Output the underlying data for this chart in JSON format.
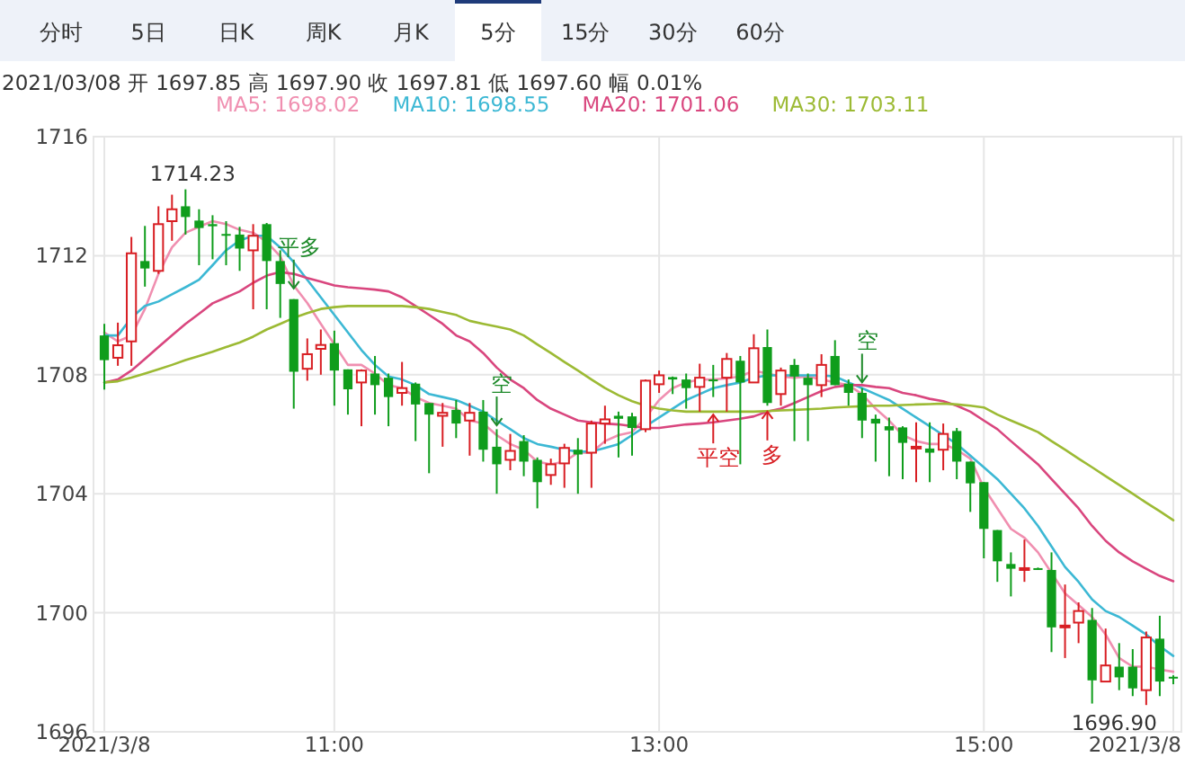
{
  "chart_data": {
    "type": "candlestick",
    "subtitle": "2021/03/08  开 1697.85  高 1697.90  收 1697.81  低 1697.60  幅 0.01%",
    "annotations": [
      "分时",
      "5日",
      "日K",
      "周K",
      "月K",
      "5分",
      "15分",
      "30分",
      "60分",
      {
        "text": "1714.23",
        "x": "2021-03-08T10:05",
        "y": 1714.23
      },
      {
        "text": "1696.90",
        "x": "2021-03-08T16:00",
        "y": 1696.9
      },
      {
        "text": "平多",
        "x": "2021-03-08T10:45",
        "y": 1710.9
      },
      {
        "text": "空",
        "x": "2021-03-08T12:00",
        "y": 1706.3
      },
      {
        "text": "平空",
        "x": "2021-03-08T13:20",
        "y": 1706.66
      },
      {
        "text": "多",
        "x": "2021-03-08T13:40",
        "y": 1706.76
      },
      {
        "text": "空",
        "x": "2021-03-08T14:15",
        "y": 1707.74
      }
    ],
    "x": [
      "2021-03-08T09:35",
      "2021-03-08T09:40",
      "2021-03-08T09:45",
      "2021-03-08T09:50",
      "2021-03-08T09:55",
      "2021-03-08T10:00",
      "2021-03-08T10:05",
      "2021-03-08T10:10",
      "2021-03-08T10:15",
      "2021-03-08T10:20",
      "2021-03-08T10:25",
      "2021-03-08T10:30",
      "2021-03-08T10:35",
      "2021-03-08T10:40",
      "2021-03-08T10:45",
      "2021-03-08T10:50",
      "2021-03-08T10:55",
      "2021-03-08T11:00",
      "2021-03-08T11:05",
      "2021-03-08T11:10",
      "2021-03-08T11:15",
      "2021-03-08T11:20",
      "2021-03-08T11:25",
      "2021-03-08T11:30",
      "2021-03-08T11:35",
      "2021-03-08T11:40",
      "2021-03-08T11:45",
      "2021-03-08T11:50",
      "2021-03-08T11:55",
      "2021-03-08T12:00",
      "2021-03-08T12:05",
      "2021-03-08T12:10",
      "2021-03-08T12:15",
      "2021-03-08T12:20",
      "2021-03-08T12:25",
      "2021-03-08T12:30",
      "2021-03-08T12:35",
      "2021-03-08T12:40",
      "2021-03-08T12:45",
      "2021-03-08T12:50",
      "2021-03-08T12:55",
      "2021-03-08T13:00",
      "2021-03-08T13:05",
      "2021-03-08T13:10",
      "2021-03-08T13:15",
      "2021-03-08T13:20",
      "2021-03-08T13:25",
      "2021-03-08T13:30",
      "2021-03-08T13:35",
      "2021-03-08T13:40",
      "2021-03-08T13:45",
      "2021-03-08T13:50",
      "2021-03-08T13:55",
      "2021-03-08T14:00",
      "2021-03-08T14:05",
      "2021-03-08T14:10",
      "2021-03-08T14:15",
      "2021-03-08T14:20",
      "2021-03-08T14:25",
      "2021-03-08T14:30",
      "2021-03-08T14:35",
      "2021-03-08T14:40",
      "2021-03-08T14:45",
      "2021-03-08T14:50",
      "2021-03-08T14:55",
      "2021-03-08T15:00",
      "2021-03-08T15:05",
      "2021-03-08T15:10",
      "2021-03-08T15:15",
      "2021-03-08T15:20",
      "2021-03-08T15:25",
      "2021-03-08T15:30",
      "2021-03-08T15:35",
      "2021-03-08T15:40",
      "2021-03-08T15:45",
      "2021-03-08T15:50",
      "2021-03-08T15:55",
      "2021-03-08T16:00",
      "2021-03-08T16:05",
      "2021-03-08T16:10"
    ],
    "ohlc": [
      [
        1709.32,
        1709.71,
        1707.5,
        1708.49
      ],
      [
        1708.57,
        1709.75,
        1708.3,
        1708.99
      ],
      [
        1709.12,
        1712.63,
        1708.3,
        1712.08
      ],
      [
        1711.82,
        1713.0,
        1710.96,
        1711.57
      ],
      [
        1711.49,
        1713.66,
        1711.39,
        1713.06
      ],
      [
        1713.16,
        1714.05,
        1712.5,
        1713.56
      ],
      [
        1713.66,
        1714.23,
        1712.71,
        1713.3
      ],
      [
        1713.18,
        1713.56,
        1711.68,
        1712.93
      ],
      [
        1713.06,
        1713.36,
        1711.88,
        1712.99
      ],
      [
        1712.73,
        1713.16,
        1711.68,
        1712.69
      ],
      [
        1712.71,
        1712.97,
        1711.49,
        1712.24
      ],
      [
        1712.18,
        1713.06,
        1710.2,
        1712.67
      ],
      [
        1713.06,
        1713.1,
        1710.2,
        1711.82
      ],
      [
        1711.82,
        1712.18,
        1709.91,
        1711.05
      ],
      [
        1710.54,
        1710.54,
        1706.86,
        1708.1
      ],
      [
        1708.2,
        1709.22,
        1707.8,
        1708.69
      ],
      [
        1708.87,
        1709.52,
        1708.0,
        1709.0
      ],
      [
        1709.06,
        1709.48,
        1706.96,
        1708.14
      ],
      [
        1708.18,
        1708.18,
        1706.66,
        1707.51
      ],
      [
        1707.74,
        1708.18,
        1706.27,
        1708.14
      ],
      [
        1708.04,
        1708.63,
        1706.66,
        1707.65
      ],
      [
        1707.9,
        1708.04,
        1706.27,
        1707.25
      ],
      [
        1707.39,
        1708.43,
        1706.96,
        1707.55
      ],
      [
        1707.7,
        1707.74,
        1705.77,
        1707.0
      ],
      [
        1707.05,
        1707.05,
        1704.69,
        1706.66
      ],
      [
        1706.62,
        1707.05,
        1705.58,
        1706.72
      ],
      [
        1706.82,
        1707.15,
        1705.87,
        1706.36
      ],
      [
        1706.46,
        1707.05,
        1705.28,
        1706.72
      ],
      [
        1706.76,
        1707.15,
        1705.08,
        1705.48
      ],
      [
        1705.58,
        1706.17,
        1704.0,
        1704.99
      ],
      [
        1705.14,
        1706.01,
        1704.79,
        1705.44
      ],
      [
        1705.77,
        1705.97,
        1704.59,
        1705.08
      ],
      [
        1705.14,
        1705.22,
        1703.51,
        1704.39
      ],
      [
        1704.63,
        1705.18,
        1704.3,
        1704.99
      ],
      [
        1705.02,
        1705.68,
        1704.2,
        1705.54
      ],
      [
        1705.48,
        1705.87,
        1704.0,
        1705.32
      ],
      [
        1705.38,
        1706.46,
        1704.2,
        1706.36
      ],
      [
        1706.36,
        1706.96,
        1705.68,
        1706.5
      ],
      [
        1706.62,
        1706.76,
        1705.22,
        1706.52
      ],
      [
        1706.6,
        1706.72,
        1705.28,
        1706.21
      ],
      [
        1706.17,
        1707.84,
        1706.07,
        1707.8
      ],
      [
        1707.68,
        1708.14,
        1707.39,
        1707.98
      ],
      [
        1707.92,
        1707.94,
        1707.35,
        1707.84
      ],
      [
        1707.84,
        1708.04,
        1706.86,
        1707.55
      ],
      [
        1707.59,
        1708.37,
        1706.76,
        1707.9
      ],
      [
        1707.84,
        1708.33,
        1707.25,
        1707.78
      ],
      [
        1707.9,
        1708.73,
        1706.76,
        1708.53
      ],
      [
        1708.47,
        1708.63,
        1704.99,
        1707.74
      ],
      [
        1707.74,
        1709.36,
        1707.74,
        1708.89
      ],
      [
        1708.93,
        1709.52,
        1706.96,
        1707.05
      ],
      [
        1707.35,
        1708.24,
        1706.96,
        1708.14
      ],
      [
        1708.33,
        1708.53,
        1705.77,
        1707.94
      ],
      [
        1707.9,
        1708.04,
        1705.77,
        1707.65
      ],
      [
        1707.65,
        1708.69,
        1707.25,
        1708.33
      ],
      [
        1708.63,
        1709.16,
        1707.65,
        1707.65
      ],
      [
        1707.7,
        1707.84,
        1706.96,
        1707.39
      ],
      [
        1707.39,
        1707.55,
        1705.87,
        1706.46
      ],
      [
        1706.52,
        1706.66,
        1705.08,
        1706.36
      ],
      [
        1706.27,
        1706.56,
        1704.59,
        1706.13
      ],
      [
        1706.23,
        1706.27,
        1704.49,
        1705.71
      ],
      [
        1705.52,
        1706.4,
        1704.39,
        1705.58
      ],
      [
        1705.52,
        1706.4,
        1704.39,
        1705.38
      ],
      [
        1705.48,
        1706.36,
        1704.79,
        1706.01
      ],
      [
        1706.11,
        1706.21,
        1704.49,
        1705.08
      ],
      [
        1705.08,
        1705.08,
        1703.39,
        1704.35
      ],
      [
        1704.39,
        1704.39,
        1701.83,
        1702.82
      ],
      [
        1702.78,
        1702.78,
        1701.04,
        1701.73
      ],
      [
        1701.64,
        1702.03,
        1700.55,
        1701.48
      ],
      [
        1701.46,
        1702.46,
        1701.04,
        1701.5
      ],
      [
        1701.5,
        1701.52,
        1701.44,
        1701.46
      ],
      [
        1701.44,
        1702.03,
        1698.68,
        1699.51
      ],
      [
        1699.53,
        1700.95,
        1698.48,
        1699.57
      ],
      [
        1699.67,
        1700.35,
        1698.98,
        1700.06
      ],
      [
        1699.76,
        1700.16,
        1696.95,
        1697.73
      ],
      [
        1697.69,
        1699.47,
        1697.69,
        1698.23
      ],
      [
        1698.19,
        1698.98,
        1697.4,
        1697.83
      ],
      [
        1698.19,
        1698.78,
        1697.2,
        1697.46
      ],
      [
        1697.4,
        1699.37,
        1696.9,
        1699.17
      ],
      [
        1699.13,
        1699.9,
        1697.2,
        1697.69
      ],
      [
        1697.85,
        1697.9,
        1697.6,
        1697.81
      ]
    ],
    "series": [
      {
        "name": "MA5: 1698.02",
        "color": "#f08fb0",
        "type": "line",
        "values": [
          1709.42,
          1709.12,
          1709.32,
          1710.21,
          1711.39,
          1712.28,
          1712.77,
          1712.97,
          1713.16,
          1713.06,
          1712.87,
          1712.77,
          1712.47,
          1711.98,
          1711.0,
          1710.41,
          1709.71,
          1709.02,
          1708.33,
          1708.33,
          1708.04,
          1707.65,
          1707.55,
          1707.25,
          1707.05,
          1706.96,
          1706.86,
          1706.46,
          1706.36,
          1705.97,
          1705.67,
          1705.48,
          1705.08,
          1704.99,
          1705.08,
          1705.38,
          1705.38,
          1705.77,
          1705.97,
          1706.07,
          1706.56,
          1707.15,
          1707.55,
          1707.74,
          1707.84,
          1707.84,
          1707.88,
          1707.94,
          1708.14,
          1708.04,
          1707.94,
          1707.9,
          1707.94,
          1707.84,
          1707.74,
          1707.65,
          1707.35,
          1706.86,
          1706.46,
          1705.97,
          1705.77,
          1705.67,
          1705.67,
          1705.48,
          1705.18,
          1704.2,
          1703.51,
          1702.82,
          1702.52,
          1702.03,
          1701.34,
          1700.65,
          1700.26,
          1699.86,
          1699.27,
          1698.48,
          1698.19,
          1698.19,
          1698.09,
          1698.02
        ]
      },
      {
        "name": "MA10: 1698.55",
        "color": "#3cb8d4",
        "type": "line",
        "values": [
          1709.32,
          1709.32,
          1709.91,
          1710.31,
          1710.46,
          1710.7,
          1710.94,
          1711.19,
          1711.68,
          1712.18,
          1712.51,
          1712.67,
          1712.67,
          1712.28,
          1711.78,
          1711.19,
          1710.6,
          1710.01,
          1709.42,
          1708.83,
          1708.33,
          1707.94,
          1707.84,
          1707.65,
          1707.35,
          1707.25,
          1707.15,
          1706.96,
          1706.76,
          1706.46,
          1706.17,
          1705.87,
          1705.67,
          1705.58,
          1705.48,
          1705.42,
          1705.42,
          1705.54,
          1705.67,
          1705.97,
          1706.27,
          1706.56,
          1706.86,
          1707.15,
          1707.35,
          1707.55,
          1707.65,
          1707.74,
          1707.9,
          1707.98,
          1707.98,
          1707.98,
          1707.98,
          1707.98,
          1707.94,
          1707.74,
          1707.55,
          1707.35,
          1707.15,
          1706.86,
          1706.56,
          1706.27,
          1705.97,
          1705.67,
          1705.28,
          1704.89,
          1704.49,
          1704.0,
          1703.51,
          1702.92,
          1702.23,
          1701.54,
          1701.04,
          1700.45,
          1700.06,
          1699.86,
          1699.57,
          1699.27,
          1698.88,
          1698.55
        ]
      },
      {
        "name": "MA20: 1701.06",
        "color": "#d9467e",
        "type": "line",
        "values": [
          1707.74,
          1707.84,
          1708.14,
          1708.53,
          1708.93,
          1709.32,
          1709.71,
          1710.05,
          1710.4,
          1710.6,
          1710.8,
          1711.09,
          1711.33,
          1711.45,
          1711.39,
          1711.25,
          1711.13,
          1711.0,
          1710.94,
          1710.9,
          1710.86,
          1710.8,
          1710.6,
          1710.31,
          1710.01,
          1709.71,
          1709.32,
          1709.12,
          1708.73,
          1708.24,
          1707.84,
          1707.55,
          1707.15,
          1706.86,
          1706.66,
          1706.46,
          1706.4,
          1706.36,
          1706.33,
          1706.27,
          1706.21,
          1706.21,
          1706.27,
          1706.33,
          1706.36,
          1706.4,
          1706.46,
          1706.52,
          1706.6,
          1706.76,
          1706.86,
          1707.05,
          1707.25,
          1707.45,
          1707.59,
          1707.65,
          1707.65,
          1707.59,
          1707.55,
          1707.39,
          1707.31,
          1707.19,
          1707.11,
          1706.96,
          1706.76,
          1706.46,
          1706.17,
          1705.77,
          1705.38,
          1704.99,
          1704.49,
          1704.0,
          1703.51,
          1702.92,
          1702.42,
          1702.03,
          1701.73,
          1701.48,
          1701.24,
          1701.06
        ]
      },
      {
        "name": "MA30: 1703.11",
        "color": "#9cba34",
        "type": "line",
        "values": [
          1707.74,
          1707.78,
          1707.9,
          1708.04,
          1708.18,
          1708.33,
          1708.49,
          1708.63,
          1708.77,
          1708.93,
          1709.08,
          1709.28,
          1709.52,
          1709.71,
          1709.91,
          1710.07,
          1710.21,
          1710.27,
          1710.31,
          1710.31,
          1710.31,
          1710.31,
          1710.31,
          1710.27,
          1710.21,
          1710.11,
          1710.01,
          1709.81,
          1709.71,
          1709.62,
          1709.52,
          1709.32,
          1709.02,
          1708.73,
          1708.43,
          1708.14,
          1707.84,
          1707.55,
          1707.31,
          1707.11,
          1706.96,
          1706.86,
          1706.8,
          1706.76,
          1706.76,
          1706.76,
          1706.76,
          1706.76,
          1706.76,
          1706.78,
          1706.8,
          1706.82,
          1706.84,
          1706.86,
          1706.9,
          1706.92,
          1706.94,
          1706.96,
          1706.96,
          1706.98,
          1707.0,
          1707.01,
          1707.03,
          1707.0,
          1706.96,
          1706.9,
          1706.66,
          1706.46,
          1706.27,
          1706.07,
          1705.77,
          1705.48,
          1705.18,
          1704.89,
          1704.59,
          1704.3,
          1704.0,
          1703.7,
          1703.41,
          1703.11
        ]
      }
    ],
    "xlim": [
      "2021-03-08T09:31",
      "2021-03-08T16:13"
    ],
    "xticks": [
      {
        "value": "2021-03-08T09:35",
        "label": "2021/3/8"
      },
      {
        "value": "2021-03-08T11:00",
        "label": "11:00"
      },
      {
        "value": "2021-03-08T13:00",
        "label": "13:00"
      },
      {
        "value": "2021-03-08T15:00",
        "label": "15:00"
      },
      {
        "value": "2021-03-08T16:10",
        "label": "2021/3/8"
      }
    ],
    "ylim": [
      1696,
      1716
    ],
    "yticks": [
      1696,
      1700,
      1704,
      1708,
      1712,
      1716
    ],
    "grid": true,
    "legend": "top"
  }
}
